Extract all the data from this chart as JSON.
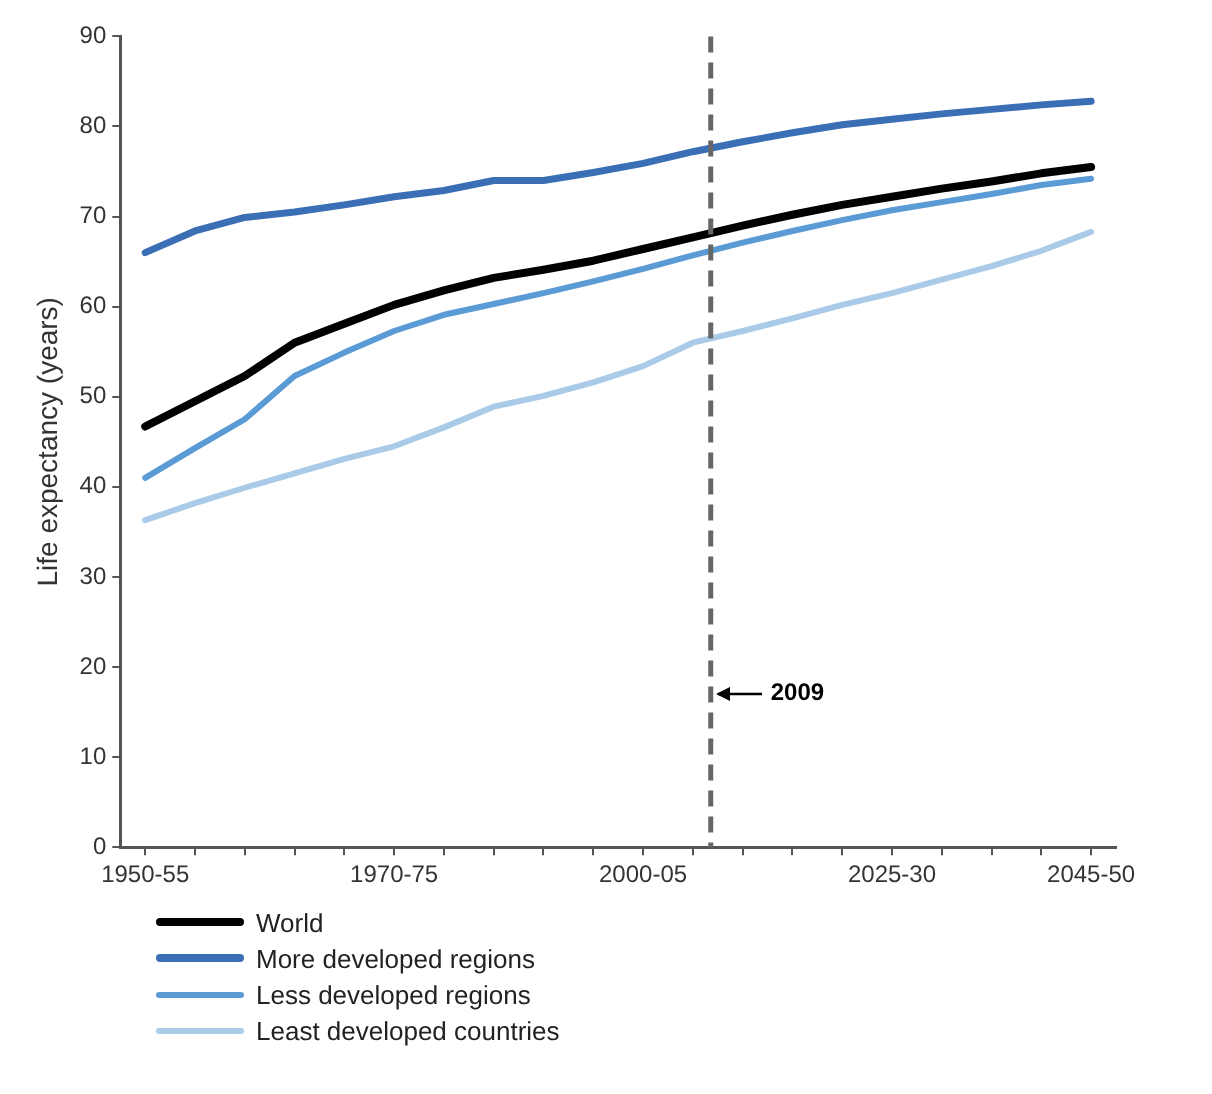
{
  "chart_data": {
    "type": "line",
    "ylabel": "Life expectancy (years)",
    "categories": [
      "1950-55",
      null,
      null,
      null,
      null,
      "1970-75",
      null,
      null,
      null,
      null,
      "2000-05",
      null,
      null,
      null,
      null,
      "2025-30",
      null,
      null,
      null,
      "2045-50"
    ],
    "ylim": [
      0,
      90
    ],
    "yticks": [
      0,
      10,
      20,
      30,
      40,
      50,
      60,
      70,
      80,
      90
    ],
    "grid": false,
    "legend": "bottom left",
    "marker": "none",
    "line_style": "solid",
    "annotations": [
      "2009"
    ],
    "series": [
      {
        "name": "World",
        "color": "#000000",
        "values": [
          46.7,
          49.5,
          52.3,
          56,
          58.1,
          60.2,
          61.8,
          63.2,
          64.1,
          65.1,
          66.4,
          67.7,
          69,
          70.2,
          71.3,
          72.2,
          73.1,
          73.9,
          74.8,
          75.5
        ]
      },
      {
        "name": "More developed regions",
        "color": "#3a6eb5",
        "values": [
          66,
          68.4,
          69.9,
          70.5,
          71.3,
          72.2,
          72.9,
          74,
          74,
          74.9,
          75.9,
          77.2,
          78.3,
          79.3,
          80.2,
          80.8,
          81.4,
          81.9,
          82.4,
          82.8
        ]
      },
      {
        "name": "Less developed regions",
        "color": "#5b9bd5",
        "values": [
          41,
          44.3,
          47.5,
          52.3,
          54.9,
          57.3,
          59.1,
          60.3,
          61.5,
          62.8,
          64.2,
          65.7,
          67.1,
          68.4,
          69.6,
          70.7,
          71.6,
          72.5,
          73.5,
          74.2
        ]
      },
      {
        "name": "Least developed countries",
        "color": "#a9cbe8",
        "values": [
          36.3,
          38.2,
          39.9,
          41.5,
          43.1,
          44.5,
          46.6,
          48.9,
          50.1,
          51.6,
          53.4,
          56,
          57.3,
          58.7,
          60.2,
          61.5,
          63,
          64.5,
          66.2,
          68.3
        ]
      }
    ]
  }
}
